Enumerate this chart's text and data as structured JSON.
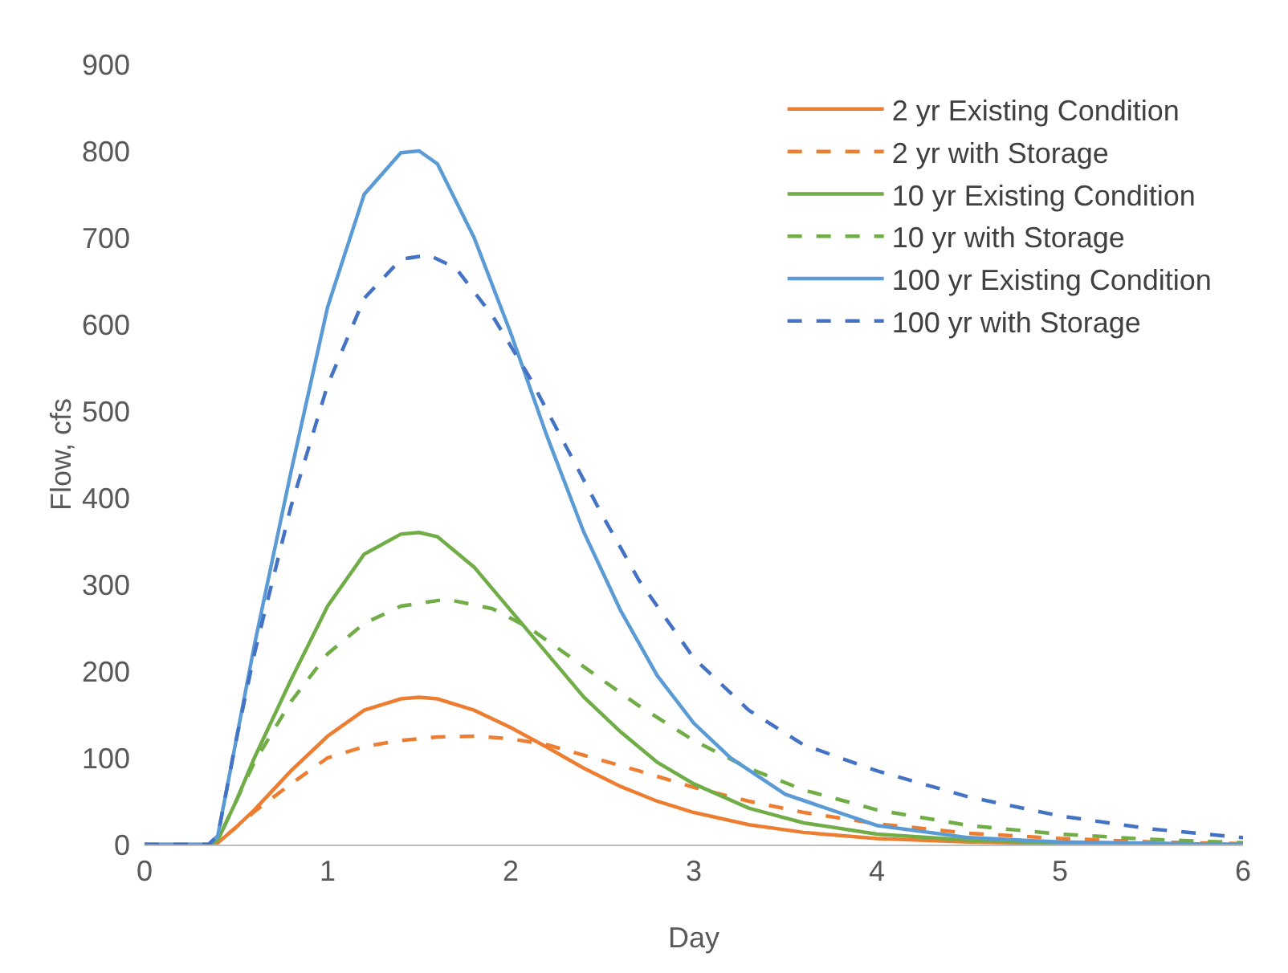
{
  "chart_data": {
    "type": "line",
    "xlabel": "Day",
    "ylabel": "Flow, cfs",
    "xlim": [
      0,
      6
    ],
    "xticks": [
      0,
      1,
      2,
      3,
      4,
      5,
      6
    ],
    "ylim": [
      0,
      900
    ],
    "yticks": [
      0,
      100,
      200,
      300,
      400,
      500,
      600,
      700,
      800,
      900
    ],
    "grid": false,
    "legend": "top right",
    "marker": "none",
    "series": [
      {
        "name": "2 yr Existing Condition",
        "color": "#ed7d31",
        "line_style": "solid",
        "x": [
          0,
          0.35,
          0.4,
          0.5,
          0.6,
          0.8,
          1.0,
          1.2,
          1.4,
          1.5,
          1.6,
          1.8,
          2.0,
          2.2,
          2.4,
          2.6,
          2.8,
          3.0,
          3.3,
          3.6,
          4.0,
          4.5,
          5,
          6
        ],
        "values": [
          0,
          0,
          2,
          20,
          40,
          85,
          125,
          155,
          168,
          170,
          168,
          155,
          135,
          112,
          88,
          67,
          50,
          37,
          23,
          14,
          7,
          3,
          1,
          0
        ]
      },
      {
        "name": "2 yr with Storage",
        "color": "#ed7d31",
        "line_style": "dashed",
        "x": [
          0,
          0.35,
          0.4,
          0.5,
          0.6,
          0.8,
          1.0,
          1.2,
          1.4,
          1.6,
          1.8,
          2.0,
          2.2,
          2.4,
          2.7,
          3.0,
          3.3,
          3.6,
          4.0,
          4.5,
          5.0,
          5.5,
          6
        ],
        "values": [
          0,
          0,
          2,
          20,
          38,
          70,
          100,
          113,
          120,
          124,
          125,
          122,
          115,
          103,
          85,
          66,
          50,
          37,
          24,
          13,
          7,
          3,
          1
        ]
      },
      {
        "name": "10 yr Existing Condition",
        "color": "#70ad47",
        "line_style": "solid",
        "x": [
          0,
          0.35,
          0.4,
          0.5,
          0.6,
          0.8,
          1.0,
          1.2,
          1.4,
          1.5,
          1.6,
          1.8,
          2.0,
          2.2,
          2.4,
          2.6,
          2.8,
          3.0,
          3.3,
          3.6,
          4.0,
          4.5,
          5,
          6
        ],
        "values": [
          0,
          0,
          5,
          50,
          100,
          190,
          275,
          335,
          358,
          360,
          355,
          320,
          270,
          220,
          170,
          130,
          95,
          70,
          42,
          25,
          12,
          5,
          2,
          0
        ]
      },
      {
        "name": "10 yr with Storage",
        "color": "#70ad47",
        "line_style": "dashed",
        "x": [
          0,
          0.35,
          0.4,
          0.5,
          0.6,
          0.8,
          1.0,
          1.2,
          1.4,
          1.65,
          1.9,
          2.1,
          2.4,
          2.7,
          3.0,
          3.3,
          3.6,
          4.0,
          4.5,
          5.0,
          5.5,
          6
        ],
        "values": [
          0,
          0,
          5,
          50,
          95,
          165,
          220,
          255,
          275,
          283,
          272,
          250,
          205,
          160,
          120,
          88,
          63,
          40,
          22,
          12,
          6,
          2
        ]
      },
      {
        "name": "100 yr Existing Condition",
        "color": "#5b9bd5",
        "line_style": "solid",
        "x": [
          0,
          0.35,
          0.4,
          0.5,
          0.6,
          0.8,
          1.0,
          1.2,
          1.4,
          1.5,
          1.6,
          1.8,
          2.0,
          2.2,
          2.4,
          2.6,
          2.8,
          3.0,
          3.2,
          3.5,
          4.0,
          4.5,
          5,
          6
        ],
        "values": [
          0,
          0,
          10,
          120,
          230,
          430,
          620,
          750,
          798,
          800,
          785,
          700,
          590,
          470,
          360,
          270,
          195,
          140,
          100,
          58,
          22,
          8,
          3,
          0
        ]
      },
      {
        "name": "100 yr with Storage",
        "color": "#4472c4",
        "line_style": "dashed",
        "x": [
          0,
          0.35,
          0.4,
          0.5,
          0.6,
          0.8,
          1.0,
          1.2,
          1.4,
          1.55,
          1.7,
          1.9,
          2.1,
          2.3,
          2.5,
          2.7,
          3.0,
          3.3,
          3.6,
          4.0,
          4.5,
          5.0,
          5.5,
          6
        ],
        "values": [
          0,
          0,
          10,
          120,
          220,
          390,
          530,
          630,
          675,
          680,
          665,
          610,
          540,
          460,
          380,
          305,
          215,
          155,
          115,
          85,
          55,
          33,
          18,
          8
        ]
      }
    ]
  }
}
